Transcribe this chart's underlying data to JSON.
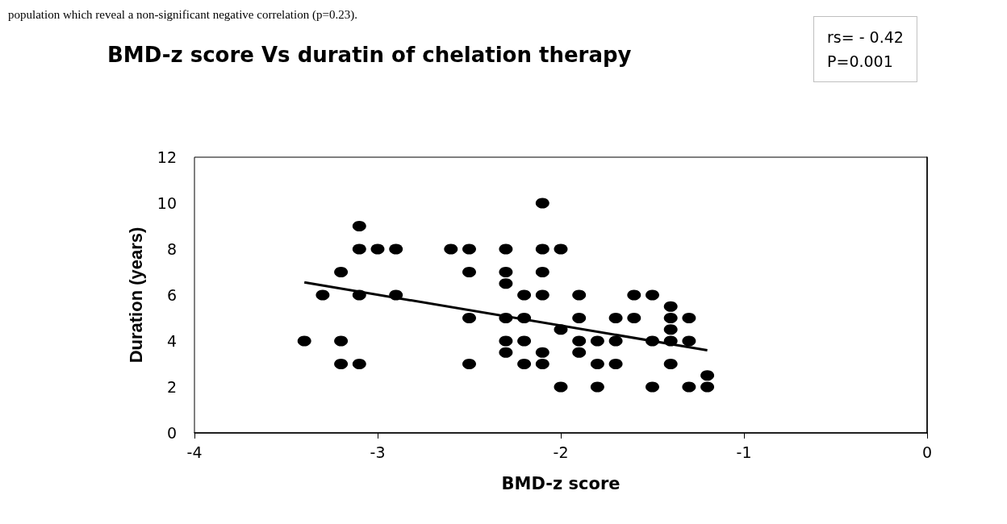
{
  "chart_data": {
    "type": "scatter",
    "title": "BMD-z score Vs duratin of chelation therapy",
    "xlabel": "BMD-z score",
    "ylabel": "Duration (years)",
    "annotations": [
      "population which reveal a non-significant negative correlation (p=0.23).",
      "rs= - 0.42\nP=0.001"
    ],
    "series": [
      {
        "color": "#000000",
        "marker": "circle",
        "x": [
          -3.1,
          -3.1,
          -3.0,
          -2.9,
          -2.6,
          -2.5,
          -2.3,
          -2.1,
          -2.0,
          -3.2,
          -2.5,
          -2.3,
          -2.1,
          -2.3,
          -3.3,
          -3.1,
          -2.9,
          -2.2,
          -2.1,
          -2.5,
          -2.3,
          -2.2,
          -2.0,
          -3.4,
          -3.2,
          -2.3,
          -2.2,
          -2.3,
          -2.1,
          -3.2,
          -3.1,
          -2.5,
          -2.2,
          -2.1,
          -2.0,
          -2.1,
          -1.9,
          -1.6,
          -1.5,
          -1.4,
          -1.9,
          -1.7,
          -1.6,
          -1.4,
          -1.3,
          -1.4,
          -1.9,
          -1.8,
          -1.7,
          -1.5,
          -1.4,
          -1.3,
          -1.9,
          -1.8,
          -1.7,
          -1.4,
          -1.2,
          -1.8,
          -1.5,
          -1.3,
          -1.2
        ],
        "values": [
          9,
          8,
          8,
          8,
          8,
          8,
          8,
          8,
          8,
          7,
          7,
          7,
          7,
          6.5,
          6,
          6,
          6,
          6,
          6,
          5,
          5,
          5,
          4.5,
          4,
          4,
          4,
          4,
          3.5,
          3.5,
          3,
          3,
          3,
          3,
          3,
          2,
          10,
          6,
          6,
          6,
          5.5,
          5,
          5,
          5,
          5,
          5,
          4.5,
          4,
          4,
          4,
          4,
          4,
          4,
          3.5,
          3,
          3,
          3,
          2.5,
          2,
          2,
          2,
          2
        ]
      },
      {
        "type": "line",
        "color": "#000000",
        "marker": "none",
        "line_style": "solid",
        "x": [
          -3.4,
          -1.2
        ],
        "values": [
          6.55,
          3.6
        ]
      }
    ],
    "xlim": [
      -4,
      0
    ],
    "xticks": [
      -4,
      -3,
      -2,
      -1,
      0
    ],
    "ylim": [
      0,
      12
    ],
    "yticks": [
      0,
      2,
      4,
      6,
      8,
      10,
      12
    ],
    "grid": false
  }
}
